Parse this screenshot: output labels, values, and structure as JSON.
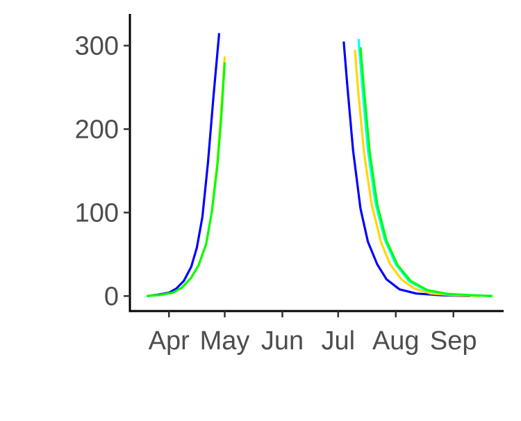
{
  "chart_data": {
    "type": "line",
    "title": "",
    "xlabel": "",
    "ylabel": "",
    "x_axis": {
      "type": "date",
      "range": [
        "2020-03-11",
        "2020-09-28"
      ],
      "ticks": [
        {
          "date": "2020-04-01",
          "label": "Apr"
        },
        {
          "date": "2020-05-01",
          "label": "May"
        },
        {
          "date": "2020-06-01",
          "label": "Jun"
        },
        {
          "date": "2020-07-01",
          "label": "Jul"
        },
        {
          "date": "2020-08-01",
          "label": "Aug"
        },
        {
          "date": "2020-09-01",
          "label": "Sep"
        }
      ]
    },
    "y_axis": {
      "range": [
        -18,
        338
      ],
      "ticks": [
        0,
        100,
        200,
        300
      ]
    },
    "grid": false,
    "legend": "none",
    "series": [
      {
        "color": "#0000ff",
        "points": [
          [
            "2020-03-20",
            0
          ],
          [
            "2020-03-26",
            1.5
          ],
          [
            "2020-04-01",
            4
          ],
          [
            "2020-04-05",
            9
          ],
          [
            "2020-04-09",
            18
          ],
          [
            "2020-04-13",
            35
          ],
          [
            "2020-04-16",
            58
          ],
          [
            "2020-04-19",
            95
          ],
          [
            "2020-04-22",
            160
          ],
          [
            "2020-04-25",
            240
          ],
          [
            "2020-04-28",
            315
          ]
        ]
      },
      {
        "color": "#ffd700",
        "points": [
          [
            "2020-03-20",
            0
          ],
          [
            "2020-03-27",
            1.2
          ],
          [
            "2020-04-03",
            4
          ],
          [
            "2020-04-08",
            10
          ],
          [
            "2020-04-13",
            22
          ],
          [
            "2020-04-17",
            37
          ],
          [
            "2020-04-21",
            62
          ],
          [
            "2020-04-24",
            100
          ],
          [
            "2020-04-27",
            160
          ],
          [
            "2020-04-29",
            220
          ],
          [
            "2020-05-01",
            287
          ]
        ]
      },
      {
        "color": "#00ff00",
        "points": [
          [
            "2020-03-20",
            0
          ],
          [
            "2020-03-27",
            1.2
          ],
          [
            "2020-04-03",
            4
          ],
          [
            "2020-04-08",
            10
          ],
          [
            "2020-04-13",
            22
          ],
          [
            "2020-04-17",
            37
          ],
          [
            "2020-04-21",
            62
          ],
          [
            "2020-04-24",
            100
          ],
          [
            "2020-04-27",
            155
          ],
          [
            "2020-04-29",
            210
          ],
          [
            "2020-05-01",
            280
          ]
        ]
      },
      {
        "color": "#0000ff",
        "points": [
          [
            "2020-07-04",
            305
          ],
          [
            "2020-07-06",
            250
          ],
          [
            "2020-07-09",
            175
          ],
          [
            "2020-07-13",
            105
          ],
          [
            "2020-07-17",
            65
          ],
          [
            "2020-07-22",
            38
          ],
          [
            "2020-07-27",
            20
          ],
          [
            "2020-08-03",
            8
          ],
          [
            "2020-08-12",
            3
          ],
          [
            "2020-08-25",
            1
          ],
          [
            "2020-09-10",
            0
          ]
        ]
      },
      {
        "color": "#ffd700",
        "points": [
          [
            "2020-07-10",
            295
          ],
          [
            "2020-07-12",
            240
          ],
          [
            "2020-07-15",
            170
          ],
          [
            "2020-07-19",
            110
          ],
          [
            "2020-07-24",
            65
          ],
          [
            "2020-07-29",
            38
          ],
          [
            "2020-08-04",
            20
          ],
          [
            "2020-08-11",
            9
          ],
          [
            "2020-08-20",
            3
          ],
          [
            "2020-09-01",
            1
          ],
          [
            "2020-09-15",
            0
          ]
        ]
      },
      {
        "color": "#00ffff",
        "points": [
          [
            "2020-07-12",
            308
          ],
          [
            "2020-07-14",
            250
          ],
          [
            "2020-07-17",
            175
          ],
          [
            "2020-07-21",
            112
          ],
          [
            "2020-07-26",
            68
          ],
          [
            "2020-08-01",
            38
          ],
          [
            "2020-08-08",
            18
          ],
          [
            "2020-08-17",
            7
          ],
          [
            "2020-08-28",
            2.5
          ],
          [
            "2020-09-10",
            1
          ],
          [
            "2020-09-22",
            0
          ]
        ]
      },
      {
        "color": "#00ff00",
        "points": [
          [
            "2020-07-13",
            298
          ],
          [
            "2020-07-15",
            245
          ],
          [
            "2020-07-18",
            172
          ],
          [
            "2020-07-22",
            110
          ],
          [
            "2020-07-27",
            66
          ],
          [
            "2020-08-02",
            37
          ],
          [
            "2020-08-09",
            18
          ],
          [
            "2020-08-18",
            7
          ],
          [
            "2020-08-29",
            2.5
          ],
          [
            "2020-09-10",
            1
          ],
          [
            "2020-09-22",
            0
          ]
        ]
      }
    ]
  }
}
